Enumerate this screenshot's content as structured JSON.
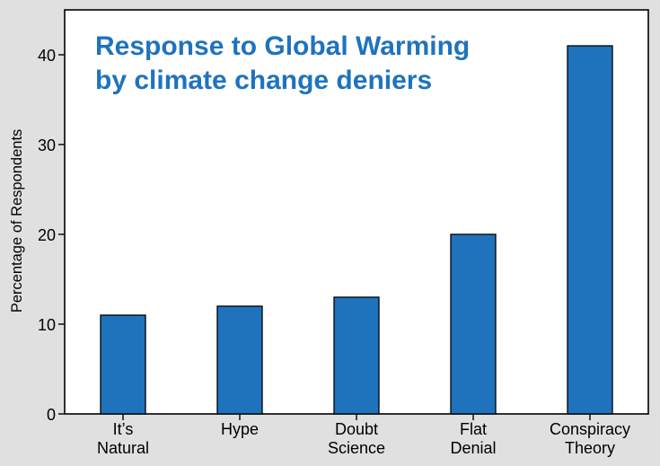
{
  "chart_data": {
    "type": "bar",
    "title": [
      "Response to Global Warming",
      "by climate change deniers"
    ],
    "xlabel": "",
    "ylabel": "Percentage of Respondents",
    "categories": [
      [
        "It’s",
        "Natural"
      ],
      [
        "Hype"
      ],
      [
        "Doubt",
        "Science"
      ],
      [
        "Flat",
        "Denial"
      ],
      [
        "Conspiracy",
        "Theory"
      ]
    ],
    "values": [
      11,
      12,
      13,
      20,
      41
    ],
    "ylim": [
      0,
      45
    ],
    "yticks": [
      0,
      10,
      20,
      30,
      40
    ],
    "grid": false,
    "colors": {
      "background": "#e0e0e0",
      "plot_background": "#ffffff",
      "bar": "#1f73bd",
      "bar_edge": "#000000",
      "title": "#1f73bd",
      "text": "#000000"
    }
  }
}
